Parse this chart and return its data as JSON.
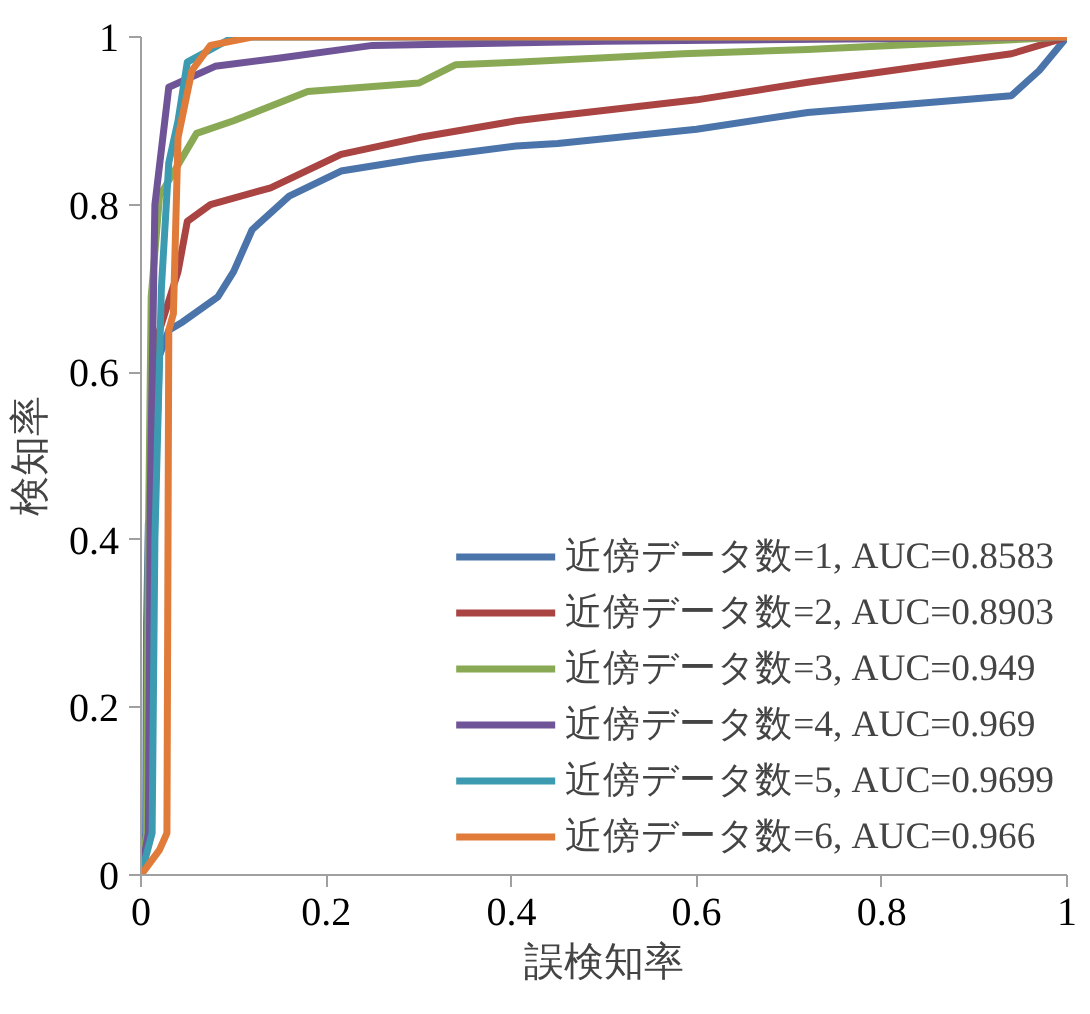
{
  "chart_data": {
    "type": "line",
    "xlabel": "誤検知率",
    "ylabel": "検知率",
    "xlim": [
      0,
      1
    ],
    "ylim": [
      0,
      1
    ],
    "xticks": [
      0,
      0.2,
      0.4,
      0.6,
      0.8,
      1
    ],
    "yticks": [
      0,
      0.2,
      0.4,
      0.6,
      0.8,
      1
    ],
    "grid": false,
    "legend": "bottom right",
    "marker": "none",
    "line_style": "solid",
    "series": [
      {
        "name": "近傍データ数=1, AUC=0.8583",
        "color": "#4a74aa",
        "x": [
          0,
          0.005,
          0.006,
          0.008,
          0.015,
          0.02,
          0.03,
          0.045,
          0.083,
          0.1,
          0.12,
          0.16,
          0.216,
          0.3,
          0.405,
          0.45,
          0.6,
          0.72,
          0.94,
          0.97,
          1
        ],
        "values": [
          0,
          0.05,
          0.3,
          0.42,
          0.45,
          0.62,
          0.65,
          0.66,
          0.69,
          0.72,
          0.77,
          0.81,
          0.84,
          0.855,
          0.87,
          0.873,
          0.89,
          0.91,
          0.93,
          0.96,
          1
        ]
      },
      {
        "name": "近傍データ数=2, AUC=0.8903",
        "color": "#a94442",
        "x": [
          0,
          0.01,
          0.012,
          0.015,
          0.02,
          0.04,
          0.05,
          0.075,
          0.14,
          0.216,
          0.3,
          0.405,
          0.45,
          0.6,
          0.72,
          0.94,
          1
        ],
        "values": [
          0,
          0.05,
          0.3,
          0.5,
          0.65,
          0.72,
          0.78,
          0.8,
          0.82,
          0.86,
          0.88,
          0.9,
          0.906,
          0.925,
          0.946,
          0.98,
          1
        ]
      },
      {
        "name": "近傍データ数=3, AUC=0.949",
        "color": "#8aa955",
        "x": [
          0,
          0.006,
          0.008,
          0.011,
          0.02,
          0.06,
          0.1,
          0.18,
          0.3,
          0.34,
          0.405,
          0.585,
          0.72,
          1
        ],
        "values": [
          0,
          0.05,
          0.4,
          0.69,
          0.81,
          0.885,
          0.9,
          0.935,
          0.945,
          0.967,
          0.97,
          0.98,
          0.985,
          1
        ]
      },
      {
        "name": "近傍データ数=4, AUC=0.969",
        "color": "#6f5597",
        "x": [
          0,
          0.008,
          0.01,
          0.015,
          0.03,
          0.08,
          0.15,
          0.25,
          0.5,
          1
        ],
        "values": [
          0,
          0.05,
          0.45,
          0.8,
          0.94,
          0.965,
          0.975,
          0.99,
          0.995,
          1
        ]
      },
      {
        "name": "近傍データ数=5, AUC=0.9699",
        "color": "#3c9bb0",
        "x": [
          0,
          0.012,
          0.015,
          0.022,
          0.03,
          0.04,
          0.05,
          0.1,
          1
        ],
        "values": [
          0,
          0.05,
          0.4,
          0.7,
          0.85,
          0.9,
          0.97,
          1,
          1
        ]
      },
      {
        "name": "近傍データ数=6, AUC=0.966",
        "color": "#e07b39",
        "x": [
          0,
          0.02,
          0.028,
          0.03,
          0.035,
          0.04,
          0.055,
          0.075,
          0.12,
          1
        ],
        "values": [
          0,
          0.03,
          0.05,
          0.65,
          0.67,
          0.88,
          0.96,
          0.99,
          1,
          1
        ]
      }
    ]
  }
}
